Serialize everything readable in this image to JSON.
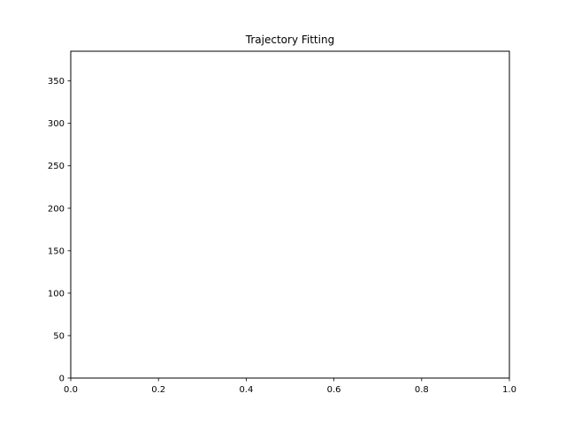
{
  "chart_data": {
    "type": "line",
    "title": "Trajectory Fitting",
    "xlabel": "",
    "ylabel": "",
    "xlim": [
      0.0,
      1.0
    ],
    "ylim": [
      0,
      385
    ],
    "x_ticks": [
      0.0,
      0.2,
      0.4,
      0.6,
      0.8,
      1.0
    ],
    "x_tick_labels": [
      "0.0",
      "0.2",
      "0.4",
      "0.6",
      "0.8",
      "1.0"
    ],
    "y_ticks": [
      0,
      50,
      100,
      150,
      200,
      250,
      300,
      350
    ],
    "y_tick_labels": [
      "0",
      "50",
      "100",
      "150",
      "200",
      "250",
      "300",
      "350"
    ],
    "grid": false,
    "series": []
  }
}
